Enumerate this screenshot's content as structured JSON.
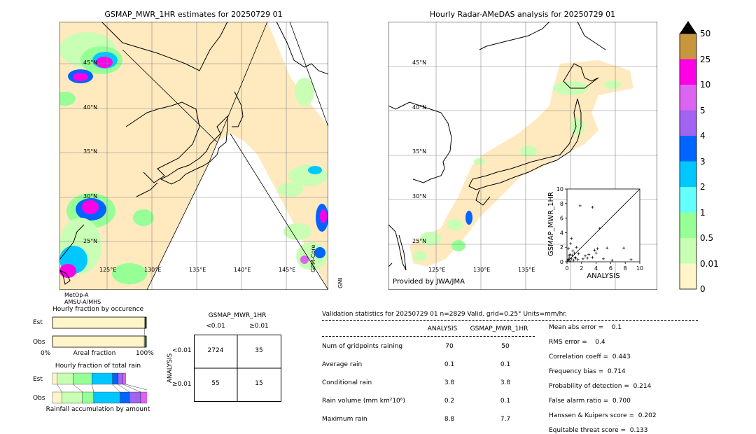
{
  "left_panel": {
    "title": "GSMAP_MWR_1HR estimates for 20250729 01",
    "lat_labels": [
      "45°N",
      "40°N",
      "35°N",
      "30°N",
      "25°N"
    ],
    "lon_labels": [
      "125°E",
      "130°E",
      "135°E",
      "140°E",
      "145°E"
    ],
    "sat_label_1": "MetOp-A",
    "sat_label_2": "AMSU-A/MHS",
    "side_label_1": "GPM-Core",
    "side_label_2": "GMI"
  },
  "right_panel": {
    "title": "Hourly Radar-AMeDAS analysis for 20250729 01",
    "lat_labels": [
      "45°N",
      "40°N",
      "35°N",
      "30°N",
      "25°N"
    ],
    "lon_labels": [
      "125°E",
      "130°E",
      "135°E"
    ],
    "provider": "Provided by JWA/JMA"
  },
  "colorbar": {
    "levels": [
      "50",
      "25",
      "10",
      "5",
      "4",
      "3",
      "2",
      "1",
      "0.5",
      "0.01",
      "0"
    ],
    "colors": [
      "#c8963c",
      "#ff00e6",
      "#dc64f0",
      "#a064f0",
      "#0064ff",
      "#00c8ff",
      "#64ffff",
      "#96ff96",
      "#c8ffb4",
      "#fff5c8"
    ],
    "extend_color": "#000000"
  },
  "chart_data": [
    {
      "type": "scatter",
      "title": "",
      "xlabel": "ANALYSIS",
      "ylabel": "GSMAP_MWR_1HR",
      "xlim": [
        0,
        10
      ],
      "ylim": [
        0,
        10
      ],
      "x_ticks": [
        "0",
        "2",
        "4",
        "6",
        "8",
        "10"
      ],
      "y_ticks": [
        "0",
        "2",
        "4",
        "6",
        "8",
        "10"
      ],
      "points": [
        [
          0.2,
          0.3
        ],
        [
          0.3,
          0.5
        ],
        [
          0.4,
          1.0
        ],
        [
          0.5,
          2.5
        ],
        [
          0.6,
          3.2
        ],
        [
          0.3,
          0.8
        ],
        [
          0.8,
          1.5
        ],
        [
          1.0,
          1.2
        ],
        [
          1.2,
          0.5
        ],
        [
          1.5,
          0.3
        ],
        [
          0.1,
          0.2
        ],
        [
          0.2,
          1.8
        ],
        [
          0.6,
          0.4
        ],
        [
          0.9,
          0.2
        ],
        [
          1.8,
          7.7
        ],
        [
          3.5,
          7.5
        ],
        [
          4.5,
          4.6
        ],
        [
          3.8,
          1.6
        ],
        [
          4.0,
          1.2
        ],
        [
          3.5,
          0.6
        ],
        [
          2.8,
          0.5
        ],
        [
          5.5,
          1.9
        ],
        [
          7.8,
          1.9
        ],
        [
          8.8,
          0.3
        ],
        [
          3.0,
          1.0
        ],
        [
          2.2,
          0.4
        ],
        [
          4.2,
          1.8
        ],
        [
          1.3,
          2.0
        ],
        [
          0.4,
          0.1
        ],
        [
          0.7,
          0.9
        ],
        [
          1.1,
          0.6
        ],
        [
          1.6,
          1.1
        ],
        [
          2.5,
          0.8
        ],
        [
          5.0,
          0.4
        ],
        [
          6.2,
          0.2
        ]
      ]
    },
    {
      "type": "bar",
      "title": "Hourly fraction by occurence",
      "categories": [
        "Est",
        "Obs"
      ],
      "xlabel": "Areal fraction",
      "x_ticks": [
        "0%",
        "100%"
      ],
      "series": [
        {
          "values": [
            0.982,
            0.978
          ],
          "color": "#fff5c8"
        },
        {
          "values": [
            0.005,
            0.007
          ],
          "color": "#c8ffb4"
        },
        {
          "values": [
            0.004,
            0.006
          ],
          "color": "#96ff96"
        },
        {
          "values": [
            0.003,
            0.004
          ],
          "color": "#00c8ff"
        },
        {
          "values": [
            0.003,
            0.002
          ],
          "color": "#0064ff"
        },
        {
          "values": [
            0.003,
            0.003
          ],
          "color": "#000000"
        }
      ]
    },
    {
      "type": "bar",
      "title": "Hourly fraction of total rain",
      "categories": [
        "Est",
        "Obs"
      ],
      "xlabel": "Rainfall accumulation by amount",
      "series": [
        {
          "values": [
            0.05,
            0.1
          ],
          "color": "#fff5c8"
        },
        {
          "values": [
            0.17,
            0.22
          ],
          "color": "#c8ffb4"
        },
        {
          "values": [
            0.2,
            0.12
          ],
          "color": "#96ff96"
        },
        {
          "values": [
            0.22,
            0.28
          ],
          "color": "#00c8ff"
        },
        {
          "values": [
            0.06,
            0.1
          ],
          "color": "#0064ff"
        },
        {
          "values": [
            0.05,
            0.12
          ],
          "color": "#a064f0"
        },
        {
          "values": [
            0.03,
            0.15
          ],
          "color": "#dc64f0"
        }
      ]
    },
    {
      "type": "table",
      "title": "GSMAP_MWR_1HR",
      "col_labels": [
        "<0.01",
        "≥0.01"
      ],
      "row_labels": [
        "<0.01",
        "≥0.01"
      ],
      "row_axis": "ANALYSIS",
      "values": [
        [
          2724,
          35
        ],
        [
          55,
          15
        ]
      ]
    }
  ],
  "validation": {
    "header": "Validation statistics for 20250729 01  n=2829 Valid. grid=0.25° Units=mm/hr.",
    "col_analysis": "ANALYSIS",
    "col_gsmap": "GSMAP_MWR_1HR",
    "rows": [
      {
        "label": "Num of gridpoints raining",
        "analysis": "70",
        "gsmap": "50"
      },
      {
        "label": "Average rain",
        "analysis": "0.1",
        "gsmap": "0.1"
      },
      {
        "label": "Conditional rain",
        "analysis": "3.8",
        "gsmap": "3.8"
      },
      {
        "label": "Rain volume (mm km²10⁶)",
        "analysis": "0.2",
        "gsmap": "0.1"
      },
      {
        "label": "Maximum rain",
        "analysis": "8.8",
        "gsmap": "7.7"
      }
    ],
    "scores": [
      "Mean abs error =    0.1",
      "RMS error =    0.4",
      "Correlation coeff =  0.443",
      "Frequency bias =  0.714",
      "Probability of detection =  0.214",
      "False alarm ratio =  0.700",
      "Hanssen & Kuipers score =  0.202",
      "Equitable threat score =  0.133"
    ]
  }
}
